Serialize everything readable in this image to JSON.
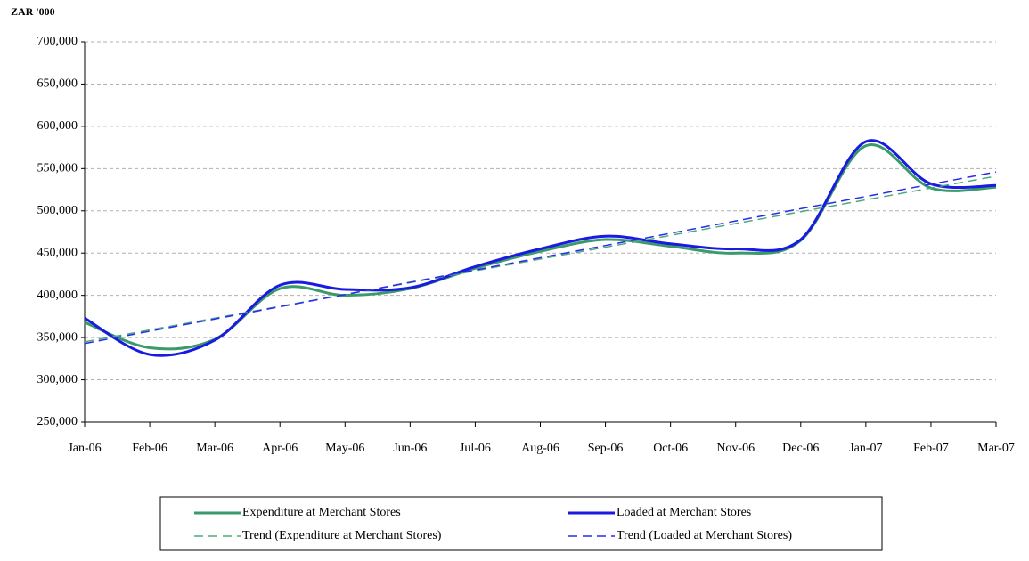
{
  "chart_data": {
    "type": "line",
    "y_label": "ZAR '000",
    "categories": [
      "Jan-06",
      "Feb-06",
      "Mar-06",
      "Apr-06",
      "May-06",
      "Jun-06",
      "Jul-06",
      "Aug-06",
      "Sep-06",
      "Oct-06",
      "Nov-06",
      "Dec-06",
      "Jan-07",
      "Feb-07",
      "Mar-07"
    ],
    "series": [
      {
        "name": "Expenditure at Merchant Stores",
        "color": "#3a9a6a",
        "style": "solid",
        "values": [
          368000,
          338000,
          348000,
          408000,
          400000,
          408000,
          432000,
          452000,
          466000,
          458000,
          450000,
          465000,
          577000,
          527000,
          528000
        ]
      },
      {
        "name": "Loaded at Merchant Stores",
        "color": "#1a1ae0",
        "style": "solid",
        "values": [
          373000,
          330000,
          347000,
          412000,
          407000,
          409000,
          434000,
          455000,
          470000,
          461000,
          455000,
          466000,
          582000,
          532000,
          530000
        ]
      },
      {
        "name": "Trend (Expenditure at Merchant Stores)",
        "color": "#4caa7a",
        "style": "dashed",
        "values": [
          345000,
          359000,
          373000,
          387000,
          401000,
          415000,
          429000,
          443000,
          457000,
          471000,
          485000,
          499000,
          513000,
          527000,
          541000
        ]
      },
      {
        "name": "Trend (Loaded at Merchant Stores)",
        "color": "#2a2af0",
        "style": "dashed",
        "values": [
          343000,
          357500,
          372000,
          386500,
          401000,
          415500,
          430000,
          444500,
          459000,
          473500,
          488000,
          502500,
          517000,
          531500,
          546000
        ]
      }
    ],
    "ylim": [
      250000,
      700000
    ],
    "yticks": [
      {
        "value": 250000,
        "label": "250,000"
      },
      {
        "value": 300000,
        "label": "300,000"
      },
      {
        "value": 350000,
        "label": "350,000"
      },
      {
        "value": 400000,
        "label": "400,000"
      },
      {
        "value": 450000,
        "label": "450,000"
      },
      {
        "value": 500000,
        "label": "500,000"
      },
      {
        "value": 550000,
        "label": "550,000"
      },
      {
        "value": 600000,
        "label": "600,000"
      },
      {
        "value": 650000,
        "label": "650,000"
      },
      {
        "value": 700000,
        "label": "700,000"
      }
    ],
    "grid": true,
    "legend": "bottom"
  }
}
